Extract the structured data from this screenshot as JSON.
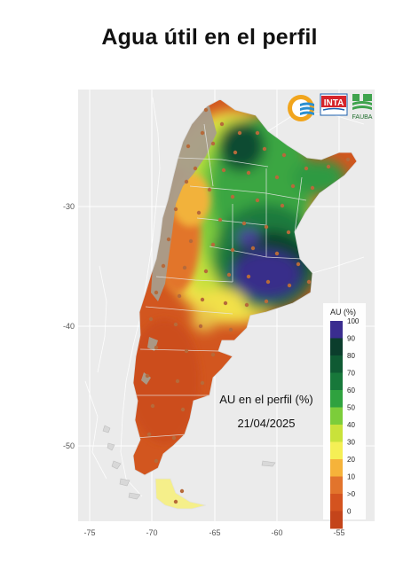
{
  "title": "Agua útil en el perfil",
  "map": {
    "annotation_title": "AU en el perfil (%)",
    "annotation_date": "21/04/2025",
    "lat_ticks": [
      "-30",
      "-40",
      "-50"
    ],
    "lon_ticks": [
      "-75",
      "-70",
      "-65",
      "-60",
      "-55"
    ],
    "legend": {
      "title": "AU (%)",
      "labels": [
        "100",
        "90",
        "80",
        "70",
        "60",
        "50",
        "40",
        "30",
        "20",
        "10",
        ">0",
        "0"
      ],
      "colors": [
        "#3a2d8f",
        "#0b3d2c",
        "#0f5a33",
        "#17783a",
        "#2fa23f",
        "#7ccd3a",
        "#c9e23a",
        "#f5ef55",
        "#f6b33a",
        "#e2742c",
        "#d4531f",
        "#c4441a"
      ]
    },
    "logos": {
      "inta": "INTA",
      "fauba": "FAUBA"
    },
    "colors": {
      "panel_bg": "#ebebeb",
      "grid": "#ffffff",
      "dry": "#d2561f",
      "wet": "#0f4a2e",
      "saturated": "#3b2f8c",
      "no_data": "#a89c8c",
      "points": "#b66a3a"
    }
  }
}
